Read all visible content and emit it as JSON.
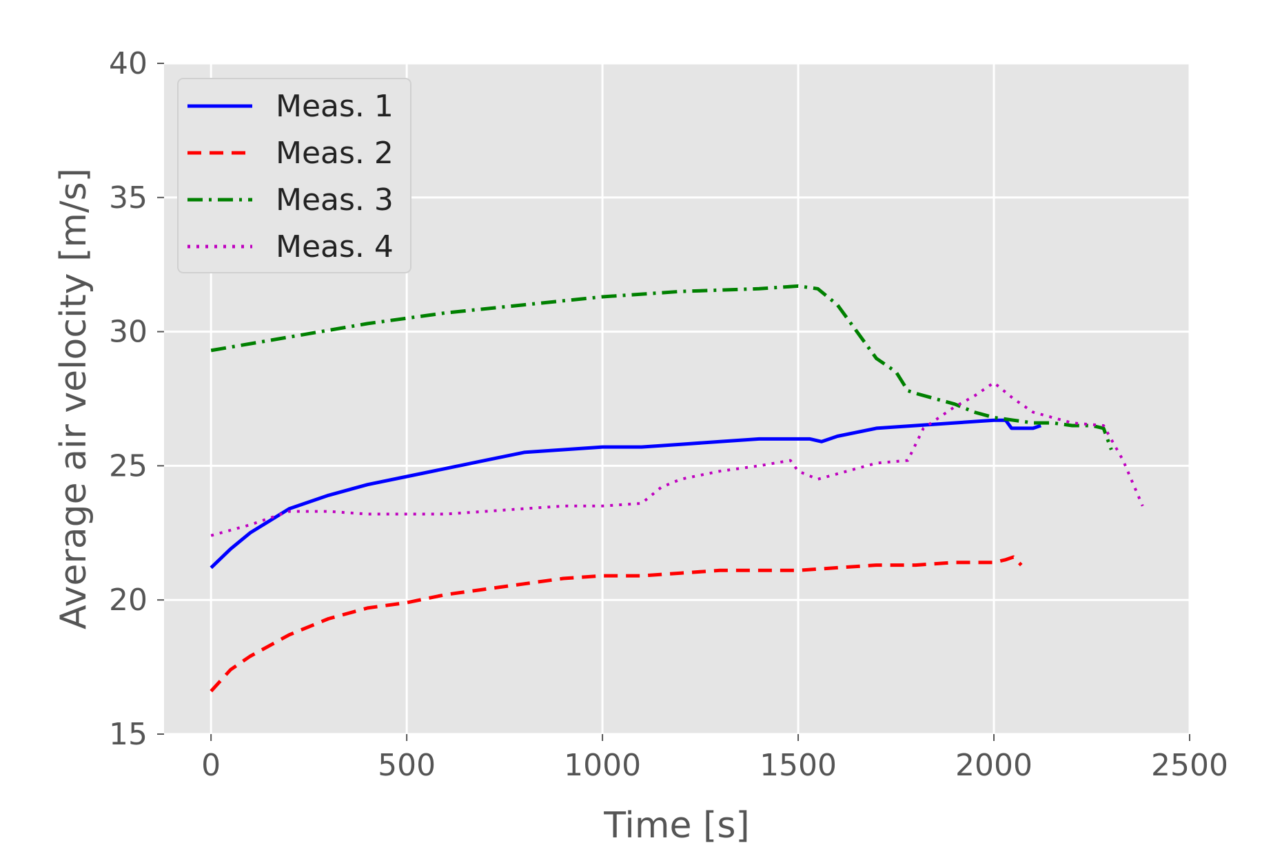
{
  "chart_data": {
    "type": "line",
    "title": "",
    "xlabel": "Time [s]",
    "ylabel": "Average air velocity [m/s]",
    "xlim": [
      -120,
      2500
    ],
    "ylim": [
      15,
      40
    ],
    "xticks": [
      0,
      500,
      1000,
      1500,
      2000,
      2500
    ],
    "yticks": [
      15,
      20,
      25,
      30,
      35,
      40
    ],
    "xtick_labels": [
      "0",
      "500",
      "1000",
      "1500",
      "2000",
      "2500"
    ],
    "ytick_labels": [
      "15",
      "20",
      "25",
      "30",
      "35",
      "40"
    ],
    "grid": true,
    "background": "#e5e5e5",
    "legend_position": "upper-left",
    "series": [
      {
        "name": "Meas. 1",
        "color": "#0000ff",
        "style": "solid",
        "x": [
          0,
          50,
          100,
          200,
          300,
          400,
          500,
          600,
          700,
          800,
          900,
          1000,
          1100,
          1200,
          1300,
          1400,
          1500,
          1530,
          1560,
          1600,
          1700,
          1800,
          1900,
          2000,
          2030,
          2045,
          2060,
          2100,
          2120
        ],
        "y": [
          21.2,
          21.9,
          22.5,
          23.4,
          23.9,
          24.3,
          24.6,
          24.9,
          25.2,
          25.5,
          25.6,
          25.7,
          25.7,
          25.8,
          25.9,
          26.0,
          26.0,
          26.0,
          25.9,
          26.1,
          26.4,
          26.5,
          26.6,
          26.7,
          26.7,
          26.4,
          26.4,
          26.4,
          26.5
        ]
      },
      {
        "name": "Meas. 2",
        "color": "#ff0000",
        "style": "dashed",
        "x": [
          0,
          50,
          100,
          200,
          300,
          400,
          500,
          600,
          700,
          800,
          900,
          1000,
          1100,
          1200,
          1300,
          1400,
          1500,
          1600,
          1700,
          1800,
          1900,
          2000,
          2030,
          2050,
          2070
        ],
        "y": [
          16.6,
          17.4,
          17.9,
          18.7,
          19.3,
          19.7,
          19.9,
          20.2,
          20.4,
          20.6,
          20.8,
          20.9,
          20.9,
          21.0,
          21.1,
          21.1,
          21.1,
          21.2,
          21.3,
          21.3,
          21.4,
          21.4,
          21.5,
          21.6,
          21.3
        ]
      },
      {
        "name": "Meas. 3",
        "color": "#008000",
        "style": "dashdot",
        "x": [
          0,
          200,
          400,
          600,
          800,
          1000,
          1200,
          1400,
          1500,
          1550,
          1600,
          1650,
          1700,
          1750,
          1780,
          1800,
          1900,
          1950,
          2000,
          2050,
          2100,
          2150,
          2200,
          2250,
          2280,
          2300
        ],
        "y": [
          29.3,
          29.8,
          30.3,
          30.7,
          31.0,
          31.3,
          31.5,
          31.6,
          31.7,
          31.6,
          31.0,
          30.0,
          29.0,
          28.5,
          27.8,
          27.7,
          27.3,
          27.0,
          26.8,
          26.7,
          26.6,
          26.6,
          26.5,
          26.5,
          26.4,
          25.6
        ]
      },
      {
        "name": "Meas. 4",
        "color": "#bf00bf",
        "style": "dotted",
        "x": [
          0,
          100,
          200,
          300,
          400,
          500,
          600,
          700,
          800,
          900,
          1000,
          1100,
          1150,
          1200,
          1300,
          1400,
          1480,
          1500,
          1550,
          1600,
          1700,
          1780,
          1820,
          1900,
          1950,
          2000,
          2050,
          2100,
          2200,
          2280,
          2330,
          2380
        ],
        "y": [
          22.4,
          22.8,
          23.3,
          23.3,
          23.2,
          23.2,
          23.2,
          23.3,
          23.4,
          23.5,
          23.5,
          23.6,
          24.2,
          24.5,
          24.8,
          25.0,
          25.2,
          24.8,
          24.5,
          24.7,
          25.1,
          25.2,
          26.4,
          27.2,
          27.6,
          28.1,
          27.5,
          27.0,
          26.6,
          26.5,
          25.2,
          23.5
        ]
      }
    ]
  }
}
